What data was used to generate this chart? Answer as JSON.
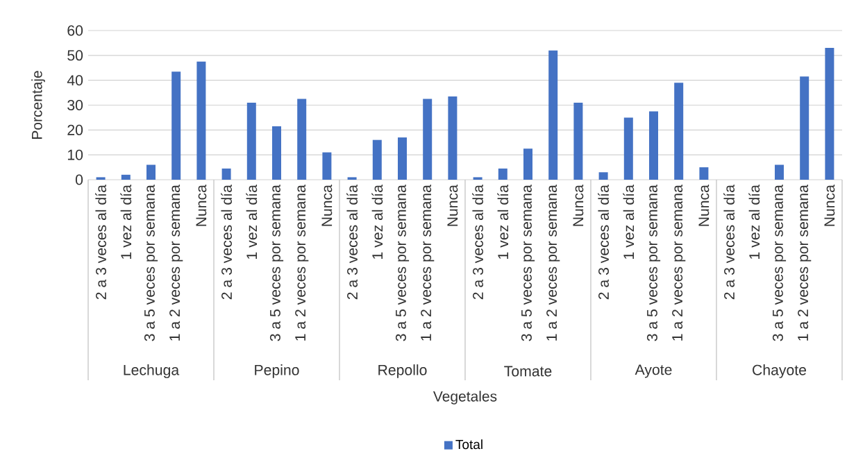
{
  "chart_data": {
    "type": "bar",
    "categories": [
      "2 a 3 veces al día",
      "1 vez al día",
      "3 a 5 veces por semana",
      "1 a 2 veces por semana",
      "Nunca",
      "2 a 3 veces al día",
      "1 vez al día",
      "3 a 5 veces por semana",
      "1 a 2 veces por semana",
      "Nunca",
      "2 a 3 veces al día",
      "1 vez al día",
      "3 a 5 veces por semana",
      "1 a 2 veces por semana",
      "Nunca",
      "2 a 3 veces al día",
      "1 vez al día",
      "3 a 5 veces por semana",
      "1 a 2 veces por semana",
      "Nunca",
      "2 a 3 veces al día",
      "1 vez al día",
      "3 a 5 veces por semana",
      "1 a 2 veces por semana",
      "Nunca",
      "2 a 3 veces al día",
      "1 vez al día",
      "3 a 5 veces por semana",
      "1 a 2 veces por semana",
      "Nunca"
    ],
    "series": [
      {
        "name": "Total",
        "color": "#4472c4",
        "values": [
          1,
          2,
          6,
          43.5,
          47.5,
          4.5,
          31,
          21.5,
          32.5,
          11,
          1,
          16,
          17,
          32.5,
          33.5,
          1,
          4.5,
          12.5,
          52,
          31,
          3,
          25,
          27.5,
          39,
          5,
          0,
          0,
          6,
          41.5,
          53
        ]
      }
    ],
    "annotations": [
      "Lechuga",
      "Pepino",
      "Repollo",
      "Tomate",
      "Ayote",
      "Chayote"
    ],
    "xlabel": "Vegetales",
    "ylabel": "Porcentaje",
    "ylim": [
      0,
      60
    ],
    "yticks": [
      0,
      10,
      20,
      30,
      40,
      50,
      60
    ],
    "grid": "y",
    "legend": "bottom"
  }
}
